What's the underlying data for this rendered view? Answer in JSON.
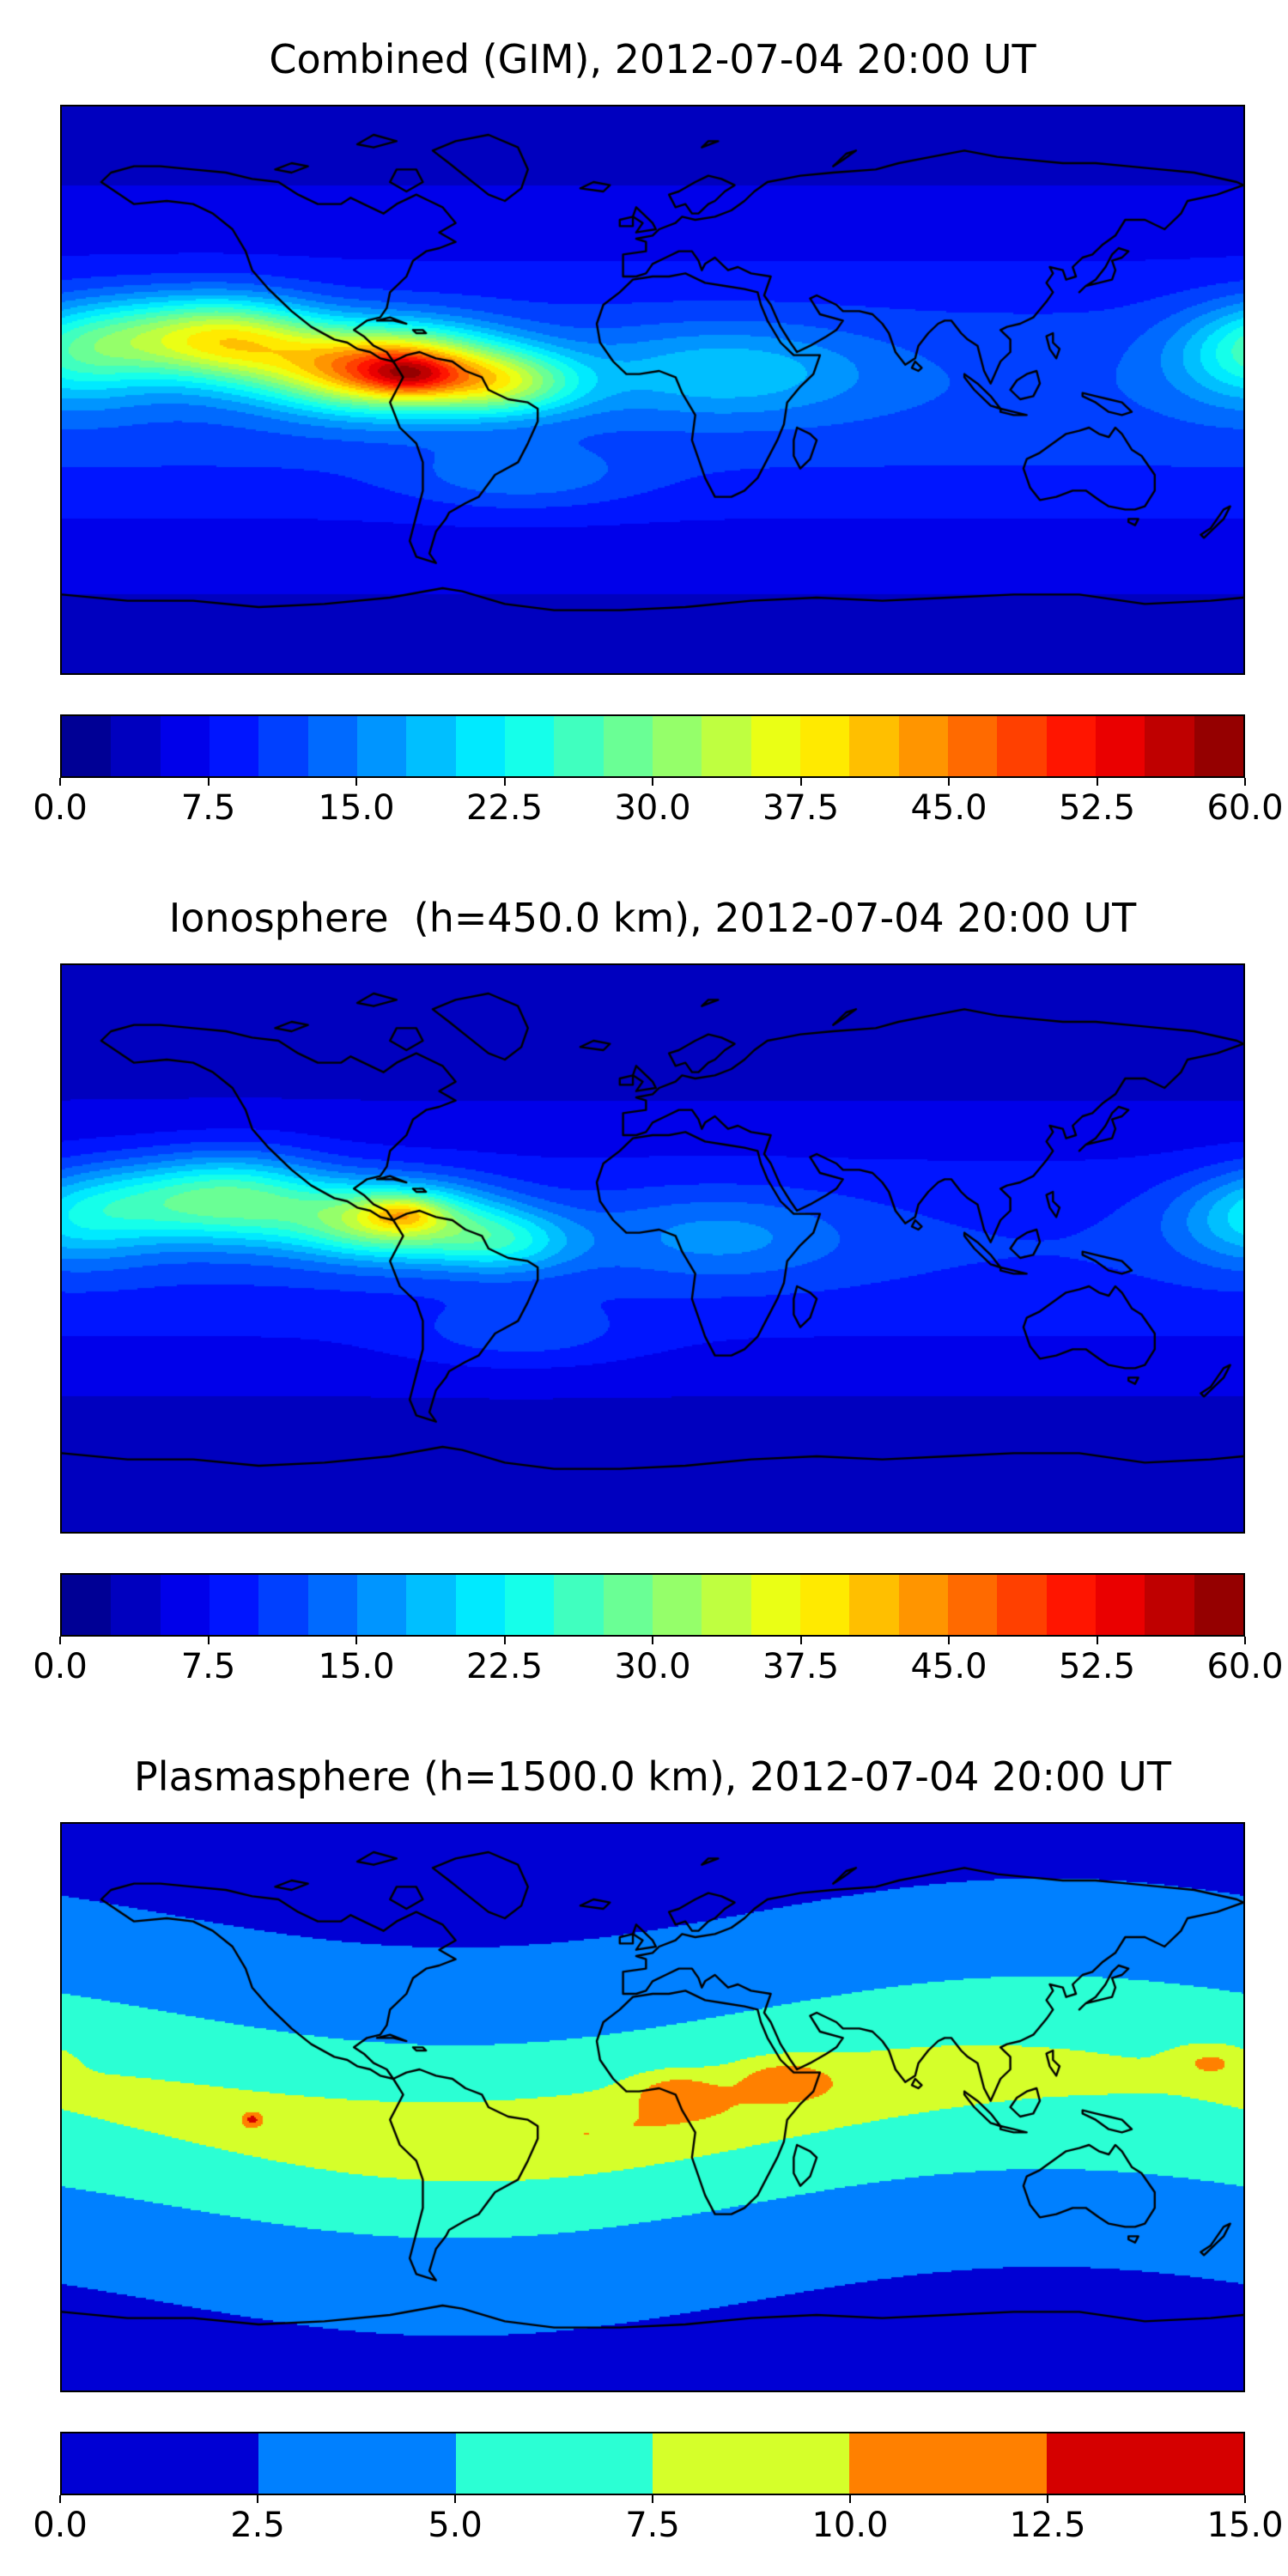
{
  "figure": {
    "background": "#ffffff",
    "text_color": "#000000",
    "colormap_name": "jet"
  },
  "chart_data": [
    {
      "type": "heatmap",
      "title": "Combined (GIM), 2012-07-04 20:00 UT",
      "projection": "equirectangular world map with coastlines",
      "x_range": [
        -180,
        180
      ],
      "y_range": [
        -90,
        90
      ],
      "grid": false,
      "colormap": "jet",
      "levels": {
        "min": 0,
        "max": 60,
        "step": 2.5,
        "n_bands": 24
      },
      "colorbar": {
        "orientation": "horizontal",
        "position": "bottom",
        "ticks": [
          "0.0",
          "7.5",
          "15.0",
          "22.5",
          "30.0",
          "37.5",
          "45.0",
          "52.5",
          "60.0"
        ]
      },
      "approx_peak": 55,
      "peak_location": "equatorial ionization anomaly over northern South America / eastern Pacific",
      "field_model": {
        "base": [
          4,
          8,
          45
        ],
        "base_follow": 0,
        "blobs": [
          {
            "lon": -82,
            "lat": 7,
            "amp": 36,
            "sx": 34,
            "sy": 13
          },
          {
            "lon": -74,
            "lat": 5,
            "amp": 10,
            "sx": 13,
            "sy": 6
          },
          {
            "lon": -127,
            "lat": 16,
            "amp": 20,
            "sx": 26,
            "sy": 13
          },
          {
            "lon": -155,
            "lat": 17,
            "amp": 12,
            "sx": 30,
            "sy": 13
          },
          {
            "lon": -45,
            "lat": 2,
            "amp": 16,
            "sx": 24,
            "sy": 10
          },
          {
            "lon": 22,
            "lat": 6,
            "amp": 8,
            "sx": 42,
            "sy": 14
          },
          {
            "lon": 183,
            "lat": 10,
            "amp": 10,
            "sx": 25,
            "sy": 15
          },
          {
            "lon": -40,
            "lat": -28,
            "amp": 5,
            "sx": 35,
            "sy": 10
          }
        ]
      }
    },
    {
      "type": "heatmap",
      "title": "Ionosphere  (h=450.0 km), 2012-07-04 20:00 UT",
      "projection": "equirectangular world map with coastlines",
      "x_range": [
        -180,
        180
      ],
      "y_range": [
        -90,
        90
      ],
      "grid": false,
      "colormap": "jet",
      "levels": {
        "min": 0,
        "max": 60,
        "step": 2.5,
        "n_bands": 24
      },
      "colorbar": {
        "orientation": "horizontal",
        "position": "bottom",
        "ticks": [
          "0.0",
          "7.5",
          "15.0",
          "22.5",
          "30.0",
          "37.5",
          "45.0",
          "52.5",
          "60.0"
        ]
      },
      "approx_peak": 43,
      "peak_location": "equatorial anomaly over northern South America, weaker than combined map",
      "field_model": {
        "base": [
          3,
          7,
          42
        ],
        "base_follow": 0,
        "blobs": [
          {
            "lon": -80,
            "lat": 9,
            "amp": 24,
            "sx": 30,
            "sy": 12
          },
          {
            "lon": -76,
            "lat": 11,
            "amp": 9,
            "sx": 11,
            "sy": 5
          },
          {
            "lon": -125,
            "lat": 16,
            "amp": 15,
            "sx": 27,
            "sy": 14
          },
          {
            "lon": -155,
            "lat": 15,
            "amp": 10,
            "sx": 30,
            "sy": 13
          },
          {
            "lon": -45,
            "lat": 2,
            "amp": 11,
            "sx": 22,
            "sy": 10
          },
          {
            "lon": 20,
            "lat": 4,
            "amp": 6,
            "sx": 40,
            "sy": 14
          },
          {
            "lon": 183,
            "lat": 8,
            "amp": 8,
            "sx": 25,
            "sy": 14
          },
          {
            "lon": -40,
            "lat": -28,
            "amp": 4,
            "sx": 35,
            "sy": 10
          }
        ]
      }
    },
    {
      "type": "heatmap",
      "title": "Plasmasphere (h=1500.0 km), 2012-07-04 20:00 UT",
      "projection": "equirectangular world map with coastlines",
      "x_range": [
        -180,
        180
      ],
      "y_range": [
        -90,
        90
      ],
      "grid": false,
      "colormap": "jet",
      "levels": {
        "min": 0,
        "max": 15,
        "step": 2.5,
        "n_bands": 6
      },
      "colorbar": {
        "orientation": "horizontal",
        "position": "bottom",
        "ticks": [
          "0.0",
          "2.5",
          "5.0",
          "7.5",
          "10.0",
          "12.5",
          "15.0"
        ]
      },
      "approx_peak": 13,
      "peak_location": "band along the magnetic equator, orange cores over Africa / Middle East, small red spot in eastern Pacific",
      "field_model": {
        "base": [
          2.0,
          5.4,
          40
        ],
        "base_follow": 1,
        "blobs": [
          {
            "lon": -20,
            "lat": 0,
            "amp": 2.6,
            "sx": 110,
            "sy": 11,
            "follow": 1
          },
          {
            "lon": 7,
            "lat": 5,
            "amp": 3.6,
            "sx": 13,
            "sy": 6
          },
          {
            "lon": 40,
            "lat": 9,
            "amp": 3.6,
            "sx": 14,
            "sy": 6
          },
          {
            "lon": -122,
            "lat": -4,
            "amp": 5.0,
            "sx": 3,
            "sy": 2.5
          },
          {
            "lon": 170,
            "lat": 14,
            "amp": 3.2,
            "sx": 10,
            "sy": 5
          }
        ]
      }
    }
  ]
}
